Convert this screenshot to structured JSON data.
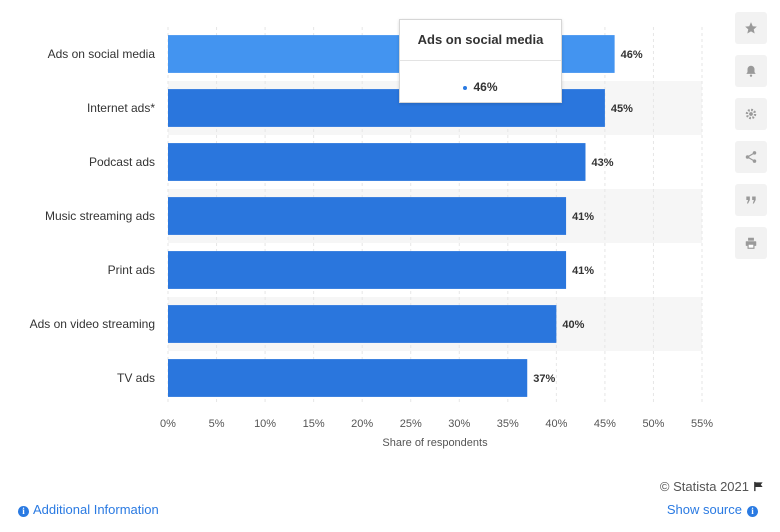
{
  "chart_data": {
    "type": "bar",
    "orientation": "horizontal",
    "categories": [
      "Ads on social media",
      "Internet ads*",
      "Podcast ads",
      "Music streaming ads",
      "Print ads",
      "Ads on video streaming",
      "TV ads"
    ],
    "values": [
      46,
      45,
      43,
      41,
      41,
      40,
      37
    ],
    "value_labels": [
      "46%",
      "45%",
      "43%",
      "41%",
      "41%",
      "40%",
      "37%"
    ],
    "xlabel": "Share of respondents",
    "xlim": [
      0,
      55
    ],
    "xticks": [
      0,
      5,
      10,
      15,
      20,
      25,
      30,
      35,
      40,
      45,
      50,
      55
    ],
    "xtick_labels": [
      "0%",
      "5%",
      "10%",
      "15%",
      "20%",
      "25%",
      "30%",
      "35%",
      "40%",
      "45%",
      "50%",
      "55%"
    ],
    "grid": "vertical",
    "highlighted_index": 0,
    "colors": {
      "bar": "#2a76dd",
      "bar_highlight": "#4394f0",
      "band": "#f6f6f6",
      "grid": "#e6e6e6"
    }
  },
  "tooltip": {
    "title": "Ads on social media",
    "value": "46%"
  },
  "sidebar": {
    "icons": [
      "star-icon",
      "bell-icon",
      "gear-icon",
      "share-icon",
      "quote-icon",
      "print-icon"
    ]
  },
  "footer": {
    "copyright": "© Statista 2021",
    "additional_info": "Additional Information",
    "show_source": "Show source",
    "accent": "#2a7ae2"
  }
}
